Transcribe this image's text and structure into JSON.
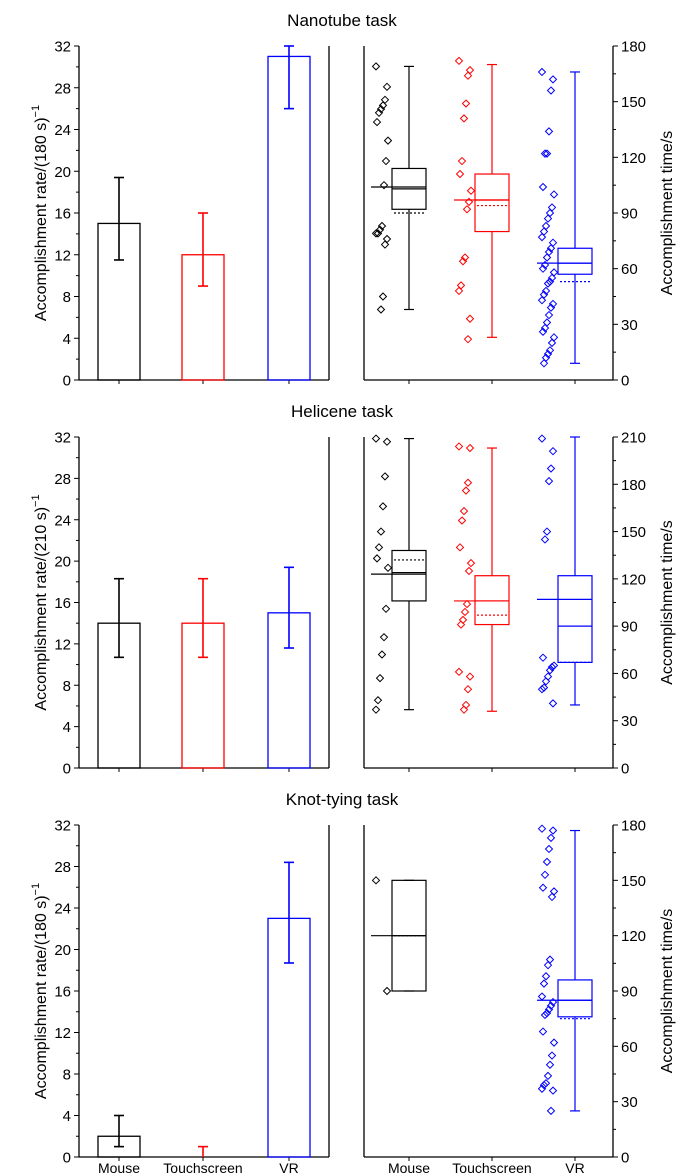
{
  "figure": {
    "x_categories": [
      "Mouse",
      "Touchscreen",
      "VR"
    ],
    "colors": {
      "Mouse": "#000000",
      "Touchscreen": "#ff0000",
      "VR": "#0000ff"
    }
  },
  "chart_data": [
    {
      "type": "bar",
      "title": "Nanotube task",
      "ylabel": "Accomplishment rate/(180 s)",
      "ylabel_superscript": "−1",
      "categories": [
        "Mouse",
        "Touchscreen",
        "VR"
      ],
      "values": [
        15,
        12,
        31
      ],
      "errors": [
        [
          11.5,
          19.4
        ],
        [
          9,
          16
        ],
        [
          26,
          32
        ]
      ],
      "ylim": [
        0,
        32
      ],
      "yticks": [
        "0",
        "4",
        "8",
        "12",
        "16",
        "20",
        "24",
        "28",
        "32"
      ]
    },
    {
      "type": "box",
      "title": "Nanotube task",
      "ylabel": "Accomplishment time/s",
      "categories": [
        "Mouse",
        "Touchscreen",
        "VR"
      ],
      "ylim": [
        0,
        180
      ],
      "yticks": [
        "0",
        "30",
        "60",
        "90",
        "120",
        "150",
        "180"
      ],
      "boxes": [
        {
          "name": "Mouse",
          "min": 38,
          "q1": 92,
          "median": 103,
          "q3": 114,
          "max": 169,
          "mean": 90,
          "sd_line": 104,
          "points": [
            169,
            158,
            151,
            148,
            146,
            144,
            139,
            129,
            118,
            105,
            83,
            81,
            79,
            79,
            76,
            73,
            45,
            38
          ]
        },
        {
          "name": "Touchscreen",
          "min": 23,
          "q1": 80,
          "median": 97,
          "q3": 111,
          "max": 170,
          "mean": 94,
          "sd_line": 97,
          "points": [
            172,
            167,
            164,
            149,
            141,
            118,
            111,
            102,
            96,
            92,
            66,
            64,
            51,
            48,
            33,
            22
          ]
        },
        {
          "name": "VR",
          "min": 9,
          "q1": 57,
          "median": 63,
          "q3": 71,
          "max": 166,
          "mean": 53,
          "sd_line": 63,
          "points": [
            166,
            162,
            156,
            134,
            122,
            122,
            104,
            100,
            93,
            90,
            87,
            83,
            80,
            77,
            74,
            71,
            69,
            66,
            62,
            60,
            58,
            55,
            53,
            52,
            48,
            46,
            43,
            41,
            39,
            35,
            31,
            28,
            26,
            23,
            20,
            16,
            14,
            12,
            9
          ]
        }
      ]
    },
    {
      "type": "bar",
      "title": "Helicene task",
      "ylabel": "Accomplishment rate/(210 s)",
      "ylabel_superscript": "−1",
      "categories": [
        "Mouse",
        "Touchscreen",
        "VR"
      ],
      "values": [
        14,
        14,
        15
      ],
      "errors": [
        [
          10.7,
          18.3
        ],
        [
          10.7,
          18.3
        ],
        [
          11.6,
          19.4
        ]
      ],
      "ylim": [
        0,
        32
      ],
      "yticks": [
        "0",
        "4",
        "8",
        "12",
        "16",
        "20",
        "24",
        "28",
        "32"
      ]
    },
    {
      "type": "box",
      "title": "Helicene task",
      "ylabel": "Accomplishment time/s",
      "categories": [
        "Mouse",
        "Touchscreen",
        "VR"
      ],
      "ylim": [
        0,
        210
      ],
      "yticks": [
        "0",
        "30",
        "60",
        "90",
        "120",
        "150",
        "180",
        "210"
      ],
      "boxes": [
        {
          "name": "Mouse",
          "min": 37,
          "q1": 106,
          "median": 124,
          "q3": 138,
          "max": 209,
          "mean": 132,
          "sd_line": 123,
          "points": [
            209,
            207,
            185,
            166,
            150,
            140,
            133,
            127,
            101,
            83,
            72,
            57,
            43,
            37
          ]
        },
        {
          "name": "Touchscreen",
          "min": 36,
          "q1": 91,
          "median": 106,
          "q3": 122,
          "max": 203,
          "mean": 97,
          "sd_line": 106,
          "points": [
            204,
            203,
            181,
            176,
            163,
            157,
            140,
            130,
            125,
            104,
            99,
            94,
            91,
            61,
            58,
            50,
            40,
            37
          ]
        },
        {
          "name": "VR",
          "min": 40,
          "q1": 67,
          "median": 90,
          "q3": 122,
          "max": 210,
          "mean": 67,
          "sd_line": 107,
          "points": [
            209,
            201,
            190,
            182,
            150,
            145,
            70,
            65,
            64,
            62,
            58,
            55,
            51,
            50,
            41
          ]
        }
      ]
    },
    {
      "type": "bar",
      "title": "Knot-tying task",
      "ylabel": "Accomplishment rate/(180 s)",
      "ylabel_superscript": "−1",
      "categories": [
        "Mouse",
        "Touchscreen",
        "VR"
      ],
      "values": [
        2,
        0,
        23
      ],
      "errors": [
        [
          1,
          4
        ],
        [
          0,
          1
        ],
        [
          18.7,
          28.4
        ]
      ],
      "ylim": [
        0,
        32
      ],
      "yticks": [
        "0",
        "4",
        "8",
        "12",
        "16",
        "20",
        "24",
        "28",
        "32"
      ]
    },
    {
      "type": "box",
      "title": "Knot-tying task",
      "ylabel": "Accomplishment time/s",
      "categories": [
        "Mouse",
        "Touchscreen",
        "VR"
      ],
      "ylim": [
        0,
        180
      ],
      "yticks": [
        "0",
        "30",
        "60",
        "90",
        "120",
        "150",
        "180"
      ],
      "boxes": [
        {
          "name": "Mouse",
          "min": 90,
          "q1": 90,
          "median": 120,
          "q3": 150,
          "max": 150,
          "mean": 120,
          "sd_line": 120,
          "points": [
            150,
            90
          ]
        },
        {
          "name": "VR",
          "min": 25,
          "q1": 76,
          "median": 85,
          "q3": 96,
          "max": 177,
          "mean": 75,
          "sd_line": 85,
          "points": [
            178,
            177,
            173,
            167,
            160,
            153,
            146,
            144,
            141,
            107,
            104,
            98,
            94,
            87,
            84,
            82,
            80,
            78,
            77,
            68,
            62,
            55,
            50,
            44,
            40,
            39,
            37,
            36,
            25
          ]
        }
      ]
    }
  ]
}
